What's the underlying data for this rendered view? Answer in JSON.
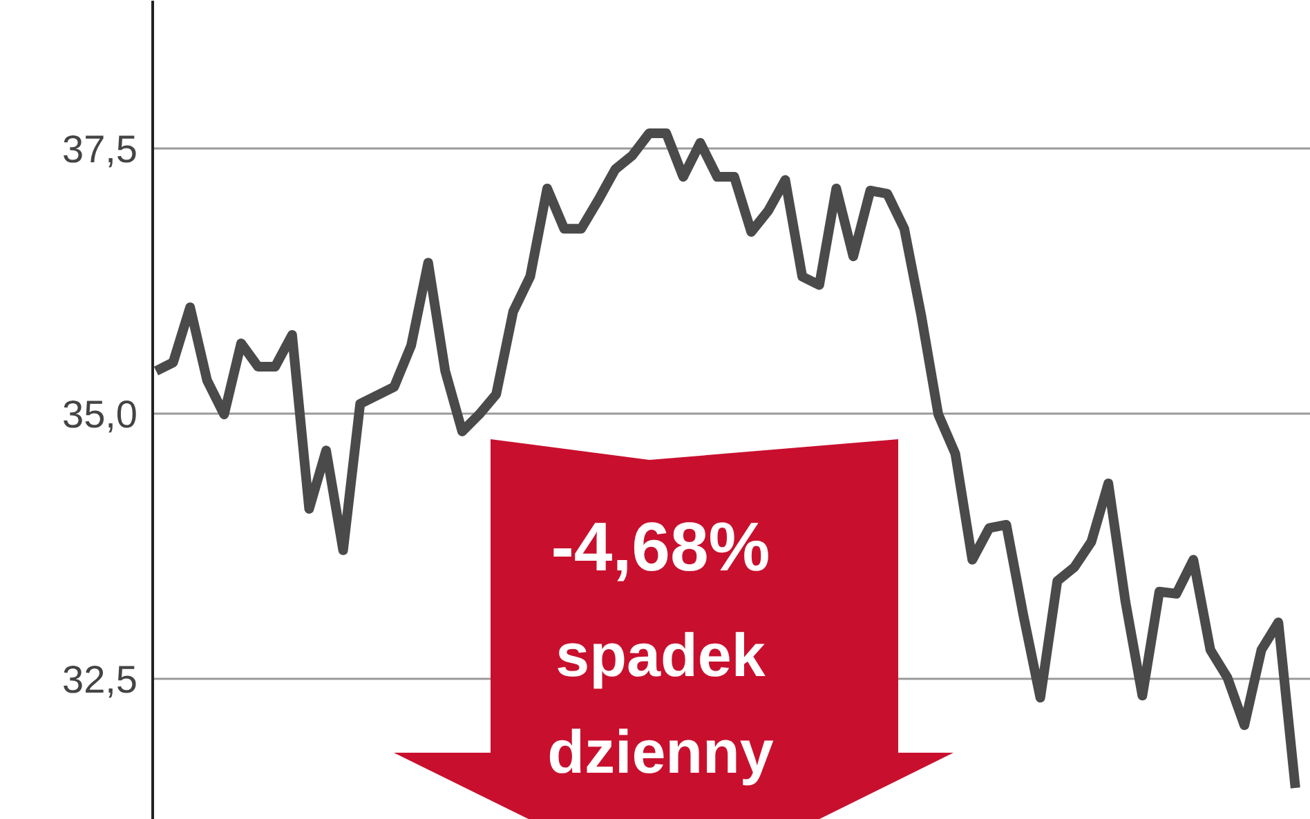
{
  "chart_data": {
    "type": "line",
    "categories": [
      null,
      null,
      null,
      null,
      null,
      null,
      null,
      null,
      null,
      null,
      null,
      null,
      null,
      null,
      null,
      null,
      null,
      null,
      null,
      null,
      null,
      null,
      null,
      null,
      null,
      null,
      null,
      null,
      null,
      null,
      null,
      null,
      null,
      null,
      null,
      null,
      null,
      null,
      null,
      null,
      null,
      null,
      null,
      null,
      null,
      null,
      null,
      null,
      null,
      null,
      null,
      null,
      null,
      null,
      null,
      null,
      null,
      null,
      null,
      null,
      null,
      null,
      null,
      null,
      null,
      null,
      null,
      null
    ],
    "series": [
      {
        "color": "#4a4a4a",
        "values": [
          35.4,
          35.48,
          36.0,
          35.31,
          34.99,
          35.66,
          35.44,
          35.44,
          35.74,
          34.1,
          34.65,
          33.71,
          35.09,
          35.17,
          35.25,
          35.64,
          36.42,
          35.4,
          34.83,
          34.99,
          35.18,
          35.96,
          36.29,
          37.12,
          36.74,
          36.74,
          37.01,
          37.3,
          37.43,
          37.64,
          37.64,
          37.23,
          37.55,
          37.23,
          37.23,
          36.71,
          36.91,
          37.2,
          36.29,
          36.21,
          37.12,
          36.48,
          37.1,
          37.07,
          36.74,
          35.92,
          34.99,
          34.62,
          33.62,
          33.92,
          33.95,
          33.1,
          32.32,
          33.42,
          33.55,
          33.79,
          34.34,
          33.23,
          32.34,
          33.32,
          33.3,
          33.62,
          32.77,
          32.51,
          32.06,
          32.77,
          33.03,
          31.47
        ]
      }
    ],
    "ylim": [
      31.17,
      38.89
    ],
    "yticks": [
      {
        "value": 32.5,
        "label": "32,5"
      },
      {
        "value": 35.0,
        "label": "35,0"
      },
      {
        "value": 37.5,
        "label": "37,5"
      }
    ],
    "grid": "y",
    "marker": "none",
    "line_style": "solid",
    "annotations": [
      "-4,68%",
      "spadek",
      "dzienny"
    ]
  }
}
